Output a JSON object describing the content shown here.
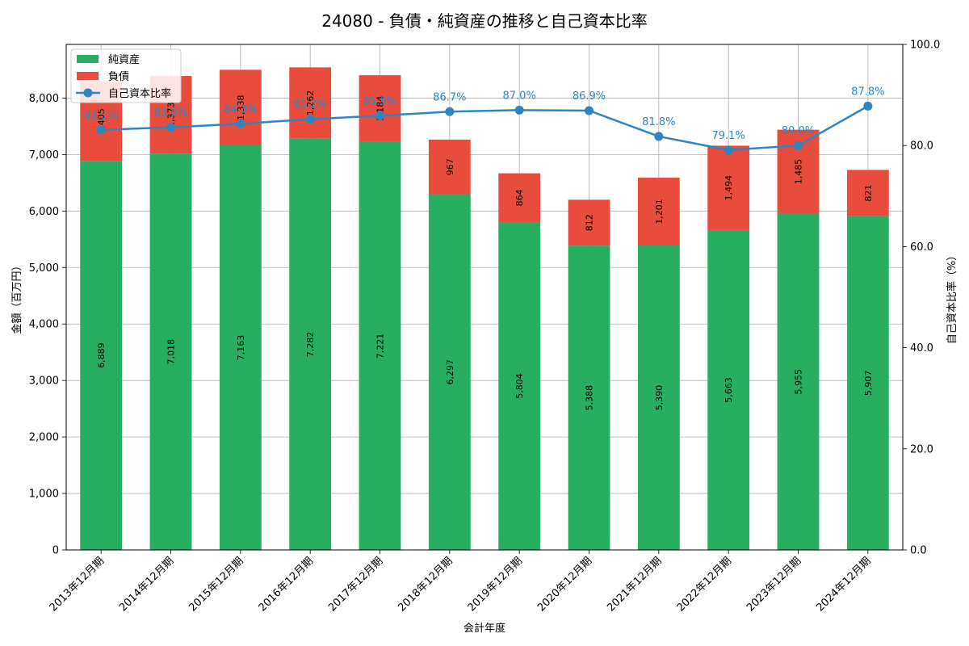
{
  "chart_data": {
    "type": "bar",
    "title": "24080 - 負債・純資産の推移と自己資本比率",
    "xlabel": "会計年度",
    "ylabel": "金額（百万円）",
    "y2label": "自己資本比率（%）",
    "ylim": [
      0,
      8950
    ],
    "y2lim": [
      0,
      100
    ],
    "yticks": [
      "0",
      "1,000",
      "2,000",
      "3,000",
      "4,000",
      "5,000",
      "6,000",
      "7,000",
      "8,000"
    ],
    "y2ticks": [
      "0.0",
      "20.0",
      "40.0",
      "60.0",
      "80.0",
      "100.0"
    ],
    "grid": true,
    "legend_position": "top-left",
    "categories": [
      "2013年12月期",
      "2014年12月期",
      "2015年12月期",
      "2016年12月期",
      "2017年12月期",
      "2018年12月期",
      "2019年12月期",
      "2020年12月期",
      "2021年12月期",
      "2022年12月期",
      "2023年12月期",
      "2024年12月期"
    ],
    "series": [
      {
        "name": "純資産",
        "kind": "stacked-bar",
        "color": "#27ae60",
        "values": [
          6889,
          7018,
          7163,
          7282,
          7221,
          6297,
          5804,
          5388,
          5390,
          5663,
          5955,
          5907
        ],
        "labels": [
          "6,889",
          "7,018",
          "7,163",
          "7,282",
          "7,221",
          "6,297",
          "5,804",
          "5,388",
          "5,390",
          "5,663",
          "5,955",
          "5,907"
        ]
      },
      {
        "name": "負債",
        "kind": "stacked-bar",
        "color": "#e74c3c",
        "values": [
          1405,
          1373,
          1338,
          1262,
          1184,
          967,
          864,
          812,
          1201,
          1494,
          1485,
          821
        ],
        "labels": [
          "1,405",
          "1,373",
          "1,338",
          "1,262",
          "1,184",
          "967",
          "864",
          "812",
          "1,201",
          "1,494",
          "1,485",
          "821"
        ]
      },
      {
        "name": "自己資本比率",
        "kind": "line",
        "axis": "right",
        "color": "#2e86c1",
        "values": [
          83.1,
          83.6,
          84.3,
          85.2,
          85.9,
          86.7,
          87.0,
          86.9,
          81.8,
          79.1,
          80.0,
          87.8
        ],
        "labels": [
          "83.1%",
          "83.6%",
          "84.3%",
          "85.2%",
          "85.9%",
          "86.7%",
          "87.0%",
          "86.9%",
          "81.8%",
          "79.1%",
          "80.0%",
          "87.8%"
        ]
      }
    ]
  }
}
